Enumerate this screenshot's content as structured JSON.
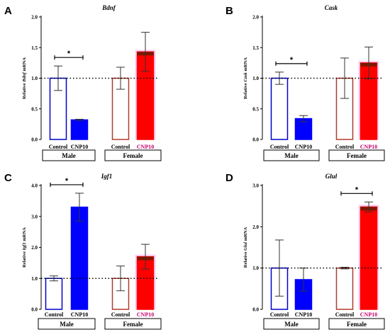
{
  "chart_data": [
    {
      "type": "bar",
      "panel_label": "A",
      "title": "Bdnf",
      "ylabel_pre": "Relative ",
      "ylabel_gene": "Bdnf",
      "ylabel_post": " mRNA",
      "ylim": [
        0,
        2.0
      ],
      "yticks": [
        "0.0",
        "0.5",
        "1.0",
        "1.5",
        "2.0"
      ],
      "ytick_values": [
        0,
        0.5,
        1.0,
        1.5,
        2.0
      ],
      "categories": [
        "Control",
        "CNP10",
        "Control",
        "CNP10"
      ],
      "values": [
        1.0,
        0.32,
        1.0,
        1.43
      ],
      "errors": [
        0.2,
        0.01,
        0.18,
        0.32
      ],
      "groups": [
        "Male",
        "Female"
      ],
      "significance": [
        {
          "pair": [
            0,
            1
          ],
          "label": "*"
        }
      ],
      "reference_line": 1.0
    },
    {
      "type": "bar",
      "panel_label": "B",
      "title": "Cask",
      "ylabel_pre": "Relative ",
      "ylabel_gene": "Cask",
      "ylabel_post": " mRNA",
      "ylim": [
        0,
        2.0
      ],
      "yticks": [
        "0.0",
        "0.5",
        "1.0",
        "1.5",
        "2.0"
      ],
      "ytick_values": [
        0,
        0.5,
        1.0,
        1.5,
        2.0
      ],
      "categories": [
        "Control",
        "CNP10",
        "Control",
        "CNP10"
      ],
      "values": [
        1.0,
        0.34,
        1.0,
        1.25
      ],
      "errors": [
        0.1,
        0.05,
        0.33,
        0.26
      ],
      "groups": [
        "Male",
        "Female"
      ],
      "significance": [
        {
          "pair": [
            0,
            1
          ],
          "label": "*"
        }
      ],
      "reference_line": 1.0
    },
    {
      "type": "bar",
      "panel_label": "C",
      "title": "Igf1",
      "ylabel_pre": "Relative ",
      "ylabel_gene": "Igf1",
      "ylabel_post": " mRNA",
      "ylim": [
        0,
        4.0
      ],
      "yticks": [
        "0.0",
        "1.0",
        "2.0",
        "3.0",
        "4.0"
      ],
      "ytick_values": [
        0,
        1,
        2,
        3,
        4
      ],
      "categories": [
        "Control",
        "CNP10",
        "Control",
        "CNP10"
      ],
      "values": [
        1.0,
        3.3,
        1.0,
        1.7
      ],
      "errors": [
        0.08,
        0.45,
        0.4,
        0.4
      ],
      "groups": [
        "Male",
        "Female"
      ],
      "significance": [
        {
          "pair": [
            0,
            1
          ],
          "label": "*"
        }
      ],
      "reference_line": 1.0
    },
    {
      "type": "bar",
      "panel_label": "D",
      "title": "Glul",
      "ylabel_pre": "Relative ",
      "ylabel_gene": "Glul",
      "ylabel_post": " mRNA",
      "ylim": [
        0,
        3.0
      ],
      "yticks": [
        "0.0",
        "1.0",
        "2.0",
        "3.0"
      ],
      "ytick_values": [
        0,
        1,
        2,
        3
      ],
      "categories": [
        "Control",
        "CNP10",
        "Control",
        "CNP10"
      ],
      "values": [
        1.0,
        0.72,
        1.0,
        2.48
      ],
      "errors": [
        0.68,
        0.28,
        0.02,
        0.12
      ],
      "groups": [
        "Male",
        "Female"
      ],
      "significance": [
        {
          "pair": [
            2,
            3
          ],
          "label": "*"
        }
      ],
      "reference_line": 1.0
    }
  ],
  "colors": {
    "male_control": "#0000cc",
    "male_cnp": "#0000ff",
    "female_control": "#b03a2e",
    "female_cnp": "#ff0000",
    "female_cnp_label": "#c8006e",
    "bar_halo": "#ffb3f0"
  }
}
